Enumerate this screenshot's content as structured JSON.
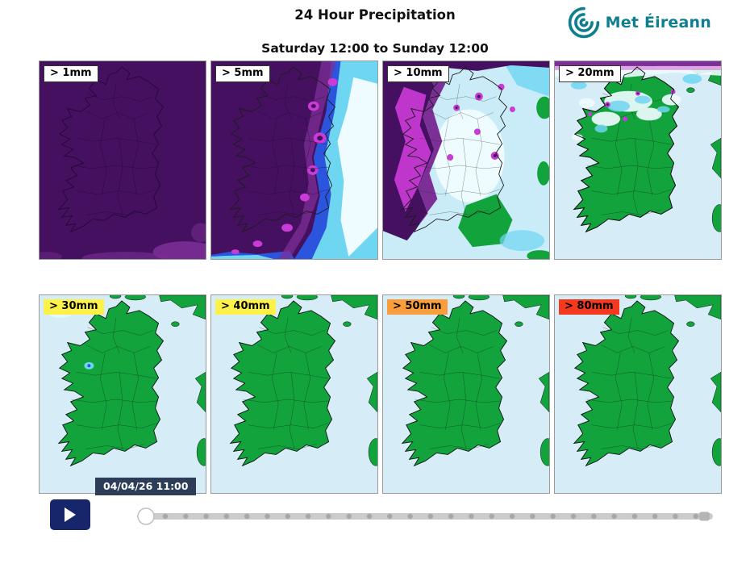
{
  "header": {
    "title": "24 Hour Precipitation",
    "subtitle": "Saturday 12:00 to Sunday 12:00",
    "logo_text": "Met Éireann"
  },
  "panels": [
    {
      "threshold_mm": 1,
      "label": "> 1mm",
      "label_bg": "#ffffff",
      "label_border": true,
      "style": "p1"
    },
    {
      "threshold_mm": 5,
      "label": "> 5mm",
      "label_bg": "#ffffff",
      "label_border": true,
      "style": "p5"
    },
    {
      "threshold_mm": 10,
      "label": "> 10mm",
      "label_bg": "#ffffff",
      "label_border": true,
      "style": "p10"
    },
    {
      "threshold_mm": 20,
      "label": "> 20mm",
      "label_bg": "#ffffff",
      "label_border": true,
      "style": "p20"
    },
    {
      "threshold_mm": 30,
      "label": "> 30mm",
      "label_bg": "#fcf149",
      "label_border": false,
      "style": "p30"
    },
    {
      "threshold_mm": 40,
      "label": "> 40mm",
      "label_bg": "#fcf149",
      "label_border": false,
      "style": "p40"
    },
    {
      "threshold_mm": 50,
      "label": "> 50mm",
      "label_bg": "#fa9e3d",
      "label_border": false,
      "style": "p50"
    },
    {
      "threshold_mm": 80,
      "label": "> 80mm",
      "label_bg": "#f5391f",
      "label_border": false,
      "style": "p80"
    }
  ],
  "player": {
    "timestamp": "04/04/26 11:00",
    "play_icon": "play-triangle"
  },
  "colors": {
    "accent_teal": "#0f7f8f",
    "prob_high_purple": "#45105f",
    "prob_mid_purple": "#7c2f96",
    "prob_magenta": "#c93ad6",
    "prob_blue": "#2b55dd",
    "prob_cyan": "#6fd6f2",
    "prob_pale": "#c9ecf8",
    "prob_white": "#eefcff",
    "prob_green": "#12a33c",
    "sea": "#d6edf8",
    "badge_bg": "#2e3d57",
    "play_button_bg": "#17266b"
  }
}
